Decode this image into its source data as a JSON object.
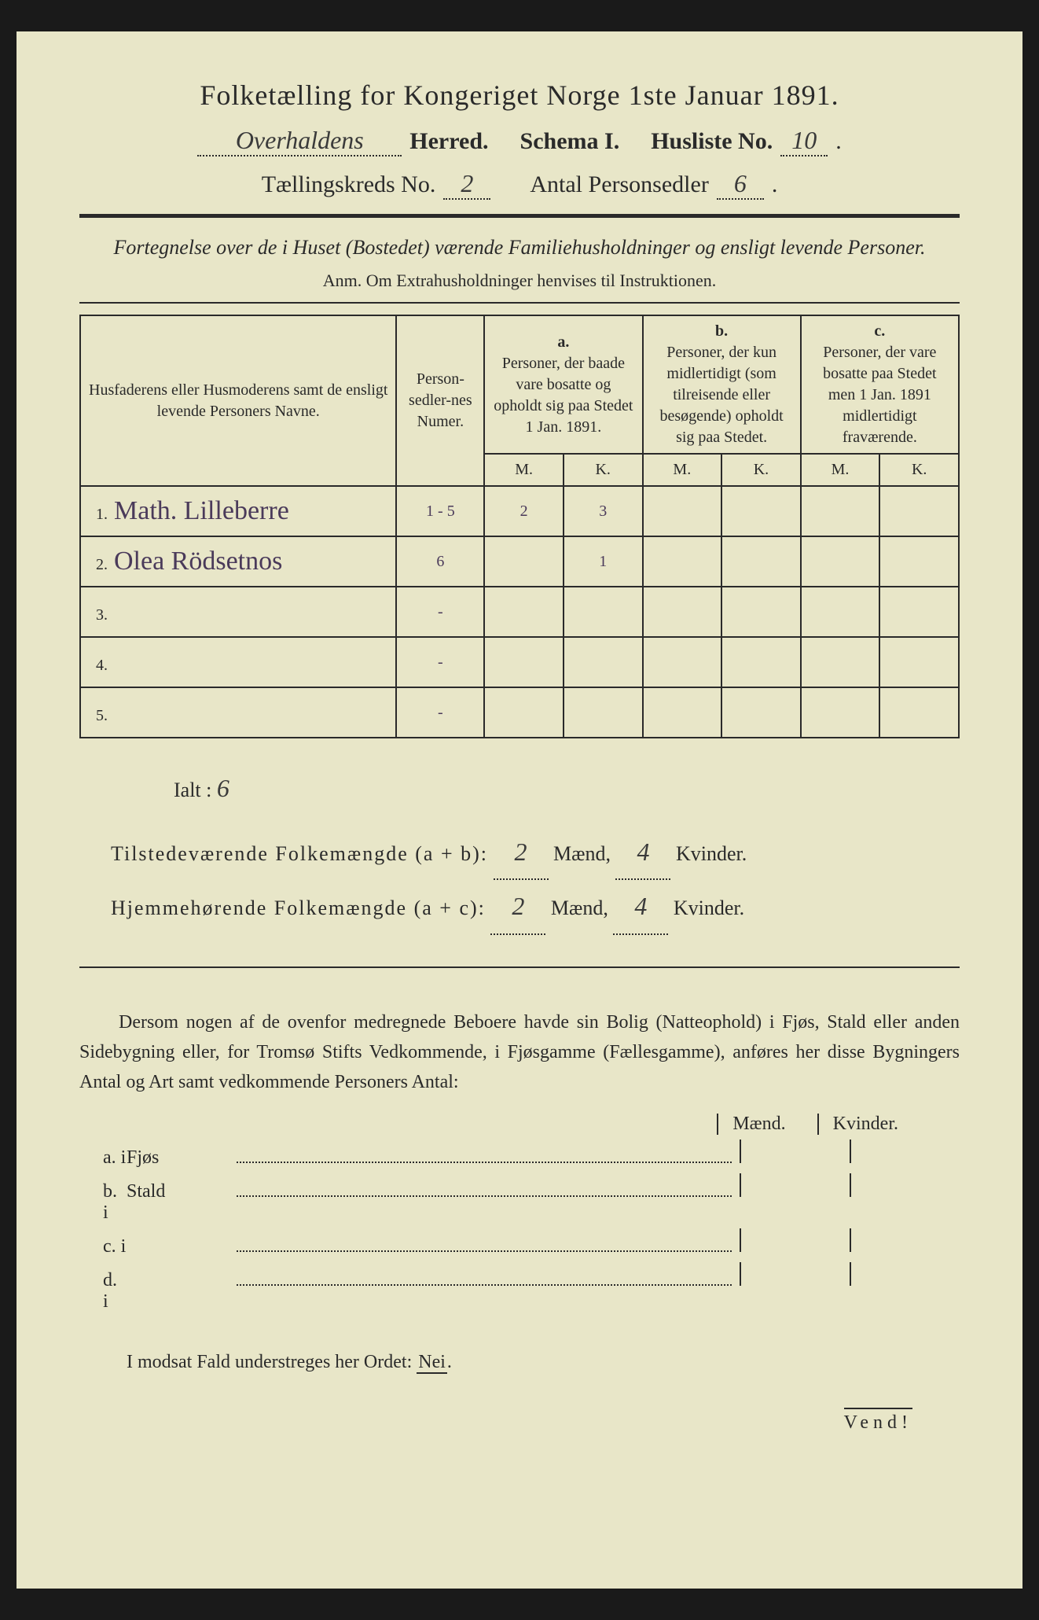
{
  "title": "Folketælling for Kongeriget Norge 1ste Januar 1891.",
  "header": {
    "herred_hand": "Overhaldens",
    "herred_label": "Herred.",
    "schema_label": "Schema I.",
    "husliste_label": "Husliste No.",
    "husliste_no": "10",
    "kreds_label": "Tællingskreds No.",
    "kreds_no": "2",
    "antal_label": "Antal Personsedler",
    "antal_no": "6"
  },
  "subtitle": "Fortegnelse over de i Huset (Bostedet) værende Familiehusholdninger og ensligt levende Personer.",
  "anm": "Anm.  Om Extrahusholdninger henvises til Instruktionen.",
  "table": {
    "col_name": "Husfaderens eller Husmoderens samt de ensligt levende Personers Navne.",
    "col_num": "Person-sedler-nes Numer.",
    "col_a_label": "a.",
    "col_a": "Personer, der baade vare bosatte og opholdt sig paa Stedet 1 Jan. 1891.",
    "col_b_label": "b.",
    "col_b": "Personer, der kun midlertidigt (som tilreisende eller besøgende) opholdt sig paa Stedet.",
    "col_c_label": "c.",
    "col_c": "Personer, der vare bosatte paa Stedet men 1 Jan. 1891 midlertidigt fraværende.",
    "mk_m": "M.",
    "mk_k": "K.",
    "rows": [
      {
        "n": "1.",
        "name": "Math. Lilleberre",
        "num": "1 - 5",
        "am": "2",
        "ak": "3",
        "bm": "",
        "bk": "",
        "cm": "",
        "ck": ""
      },
      {
        "n": "2.",
        "name": "Olea Rödsetnos",
        "num": "6",
        "am": "",
        "ak": "1",
        "bm": "",
        "bk": "",
        "cm": "",
        "ck": ""
      },
      {
        "n": "3.",
        "name": "",
        "num": "-",
        "am": "",
        "ak": "",
        "bm": "",
        "bk": "",
        "cm": "",
        "ck": ""
      },
      {
        "n": "4.",
        "name": "",
        "num": "-",
        "am": "",
        "ak": "",
        "bm": "",
        "bk": "",
        "cm": "",
        "ck": ""
      },
      {
        "n": "5.",
        "name": "",
        "num": "-",
        "am": "",
        "ak": "",
        "bm": "",
        "bk": "",
        "cm": "",
        "ck": ""
      }
    ]
  },
  "totals": {
    "ialt_label": "Ialt :",
    "ialt_val": "6",
    "line1_label": "Tilstedeværende Folkemængde (a + b):",
    "line1_m": "2",
    "line1_k": "4",
    "line2_label": "Hjemmehørende Folkemængde (a + c):",
    "line2_m": "2",
    "line2_k": "4",
    "maend": "Mænd,",
    "kvinder": "Kvinder."
  },
  "para": "Dersom nogen af de ovenfor medregnede Beboere havde sin Bolig (Natteophold) i Fjøs, Stald eller anden Sidebygning eller, for Tromsø Stifts Vedkommende, i Fjøsgamme (Fællesgamme), anføres her disse Bygningers Antal og Art samt vedkommende Personers Antal:",
  "buildings": {
    "maend": "Mænd.",
    "kvinder": "Kvinder.",
    "rows": [
      {
        "l": "a.  i",
        "t": "Fjøs"
      },
      {
        "l": "b.  i",
        "t": "Stald"
      },
      {
        "l": "c.  i",
        "t": ""
      },
      {
        "l": "d.  i",
        "t": ""
      }
    ]
  },
  "nei_line_pre": "I modsat Fald understreges her Ordet: ",
  "nei_word": "Nei",
  "vend": "Vend!"
}
